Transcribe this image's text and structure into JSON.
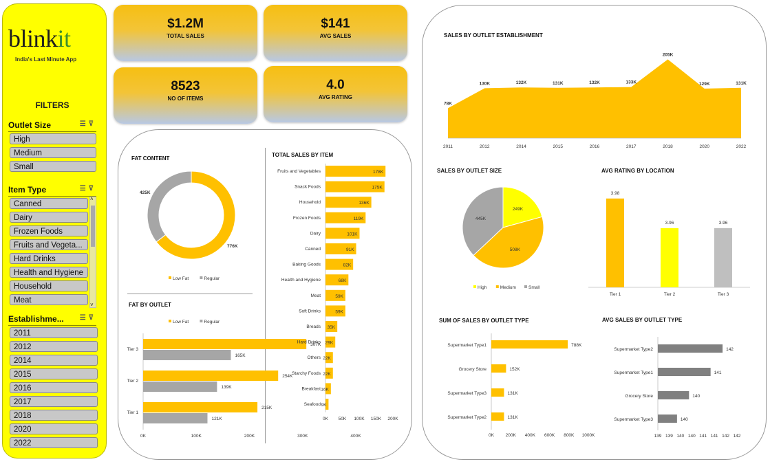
{
  "sidebar": {
    "logo_main": "blink",
    "logo_accent": "it",
    "tagline": "India's Last Minute App",
    "filters_title": "FILTERS",
    "outlet_size": {
      "label": "Outlet Size",
      "items": [
        "High",
        "Medium",
        "Small"
      ]
    },
    "item_type": {
      "label": "Item Type",
      "items": [
        "Canned",
        "Dairy",
        "Frozen Foods",
        "Fruits and Vegeta...",
        "Hard Drinks",
        "Health and Hygiene",
        "Household",
        "Meat"
      ]
    },
    "establishment": {
      "label": "Establishme...",
      "items": [
        "2011",
        "2012",
        "2014",
        "2015",
        "2016",
        "2017",
        "2018",
        "2020",
        "2022"
      ]
    },
    "filter_icons": "multi-select-icon clear-filter-icon"
  },
  "kpis": [
    {
      "value": "$1.2M",
      "label": "TOTAL SALES"
    },
    {
      "value": "$141",
      "label": "AVG SALES"
    },
    {
      "value": "8523",
      "label": "NO OF ITEMS"
    },
    {
      "value": "4.0",
      "label": "AVG RATING"
    }
  ],
  "colors": {
    "yellow": "#ffc000",
    "gray": "#a6a6a6",
    "bright_yellow": "#ffff00",
    "light_gray": "#bfbfbf",
    "dark_gray": "#808080"
  },
  "chart_data": [
    {
      "id": "fat_content",
      "type": "pie",
      "title": "FAT CONTENT",
      "categories": [
        "Low Fat",
        "Regular"
      ],
      "values": [
        776,
        425
      ],
      "labels": [
        "776K",
        "425K"
      ],
      "legend": "bottom"
    },
    {
      "id": "fat_by_outlet",
      "type": "bar",
      "title": "FAT BY OUTLET",
      "categories": [
        "Tier 3",
        "Tier 2",
        "Tier 1"
      ],
      "series": [
        {
          "name": "Low Fat",
          "values": [
            307,
            254,
            215
          ],
          "labels": [
            "307K",
            "254K",
            "215K"
          ]
        },
        {
          "name": "Regular",
          "values": [
            165,
            139,
            121
          ],
          "labels": [
            "165K",
            "139K",
            "121K"
          ]
        }
      ],
      "xticks": [
        "0K",
        "100K",
        "200K",
        "300K",
        "400K"
      ],
      "xlim": [
        0,
        400
      ],
      "legend": "top"
    },
    {
      "id": "total_sales_by_item",
      "type": "bar",
      "title": "TOTAL SALES BY ITEM",
      "categories": [
        "Fruits and Vegetables",
        "Snack Foods",
        "Household",
        "Frozen Foods",
        "Dairy",
        "Canned",
        "Baking Goods",
        "Health and Hygiene",
        "Meat",
        "Soft Drinks",
        "Breads",
        "Hard Drinks",
        "Others",
        "Starchy Foods",
        "Breakfast",
        "Seafood"
      ],
      "values": [
        178,
        175,
        136,
        119,
        101,
        91,
        82,
        68,
        59,
        59,
        35,
        29,
        22,
        22,
        16,
        9
      ],
      "labels": [
        "178K",
        "175K",
        "136K",
        "119K",
        "101K",
        "91K",
        "82K",
        "68K",
        "59K",
        "59K",
        "35K",
        "29K",
        "22K",
        "22K",
        "16K",
        "9K"
      ],
      "xticks": [
        "0K",
        "50K",
        "100K",
        "150K",
        "200K"
      ],
      "xlim": [
        0,
        200
      ]
    },
    {
      "id": "sales_by_establishment",
      "type": "area",
      "title": "SALES BY OUTLET ESTABLISHMENT",
      "categories": [
        "2011",
        "2012",
        "2014",
        "2015",
        "2016",
        "2017",
        "2018",
        "2020",
        "2022"
      ],
      "values": [
        78,
        130,
        132,
        131,
        132,
        133,
        205,
        129,
        131
      ],
      "labels": [
        "78K",
        "130K",
        "132K",
        "131K",
        "132K",
        "133K",
        "205K",
        "129K",
        "131K"
      ],
      "ylim": [
        0,
        220
      ]
    },
    {
      "id": "sales_by_outlet_size",
      "type": "pie",
      "title": "SALES BY OUTLET SIZE",
      "categories": [
        "High",
        "Medium",
        "Small"
      ],
      "values": [
        249,
        508,
        445
      ],
      "labels": [
        "249K",
        "508K",
        "445K"
      ],
      "legend": "bottom"
    },
    {
      "id": "avg_rating_by_location",
      "type": "bar",
      "title": "AVG RATING BY LOCATION",
      "categories": [
        "Tier 1",
        "Tier 2",
        "Tier 3"
      ],
      "values": [
        3.98,
        3.96,
        3.96
      ],
      "labels": [
        "3.98",
        "3.96",
        "3.96"
      ],
      "ylim": [
        3.92,
        3.985
      ]
    },
    {
      "id": "sum_sales_by_outlet_type",
      "type": "bar",
      "title": "SUM OF SALES BY OUTLET TYPE",
      "categories": [
        "Supermarket Type1",
        "Grocery Store",
        "Supermarket Type3",
        "Supermarket Type2"
      ],
      "values": [
        788,
        152,
        131,
        131
      ],
      "labels": [
        "788K",
        "152K",
        "131K",
        "131K"
      ],
      "xticks": [
        "0K",
        "200K",
        "400K",
        "600K",
        "800K",
        "1000K"
      ],
      "xlim": [
        0,
        1000
      ]
    },
    {
      "id": "avg_sales_by_outlet_type",
      "type": "bar",
      "title": "AVG SALES BY OUTLET TYPE",
      "categories": [
        "Supermarket Type2",
        "Supermarket Type1",
        "Grocery Store",
        "Supermarket Type3"
      ],
      "values": [
        141.7,
        141.2,
        140.3,
        139.8
      ],
      "labels": [
        "142",
        "141",
        "140",
        "140"
      ],
      "xticks": [
        "139",
        "139",
        "140",
        "140",
        "141",
        "141",
        "142",
        "142"
      ],
      "xlim": [
        139,
        142.3
      ]
    }
  ]
}
